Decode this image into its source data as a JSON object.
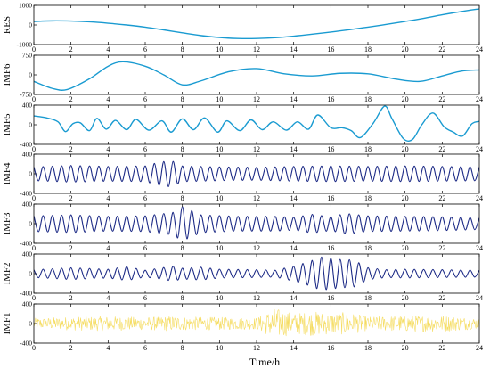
{
  "chart_data": {
    "type": "line",
    "xlabel": "Time/h",
    "xlim": [
      0,
      24
    ],
    "xticks": [
      0,
      2,
      4,
      6,
      8,
      10,
      12,
      14,
      16,
      18,
      20,
      22,
      24
    ],
    "grid": false,
    "panels": [
      {
        "ylabel": "RES",
        "ylim": [
          -1000,
          1000
        ],
        "yticks": [
          -1000,
          0,
          1000
        ],
        "yticklabels": [
          "-1000",
          "0",
          "1000"
        ],
        "color": "#1a9bd1",
        "kind": "smooth",
        "series": [
          {
            "x": [
              0,
              1,
              2,
              3,
              4,
              5,
              6,
              7,
              8,
              9,
              10,
              11,
              12,
              13,
              14,
              15,
              16,
              17,
              18,
              19,
              20,
              21,
              22,
              23,
              24
            ],
            "y": [
              180,
              210,
              200,
              160,
              90,
              0,
              -110,
              -250,
              -400,
              -540,
              -640,
              -690,
              -690,
              -650,
              -570,
              -470,
              -360,
              -240,
              -110,
              30,
              180,
              340,
              520,
              680,
              820
            ]
          }
        ]
      },
      {
        "ylabel": "IMF6",
        "ylim": [
          -750,
          750
        ],
        "yticks": [
          -750,
          0,
          750
        ],
        "yticklabels": [
          "-750",
          "0",
          "750"
        ],
        "color": "#1a9bd1",
        "kind": "smooth",
        "series": [
          {
            "x": [
              0,
              1,
              1.8,
              3,
              4,
              4.8,
              6,
              7,
              8,
              9,
              10.5,
              12,
              13.5,
              15,
              16.5,
              18,
              19.5,
              20.8,
              22,
              23,
              24
            ],
            "y": [
              -250,
              -520,
              -560,
              -150,
              330,
              500,
              330,
              0,
              -380,
              -230,
              120,
              240,
              40,
              -40,
              60,
              40,
              -160,
              -250,
              -40,
              140,
              190
            ]
          }
        ]
      },
      {
        "ylabel": "IMF5",
        "ylim": [
          -400,
          400
        ],
        "yticks": [
          -400,
          0,
          400
        ],
        "yticklabels": [
          "-400",
          "0",
          "400"
        ],
        "color": "#1a9bd1",
        "kind": "smooth",
        "series": [
          {
            "x": [
              0,
              0.7,
              1.3,
              1.7,
              2.1,
              2.5,
              3.0,
              3.4,
              3.9,
              4.4,
              5.0,
              5.5,
              6.2,
              6.9,
              7.4,
              8.0,
              8.6,
              9.2,
              9.9,
              10.4,
              11.1,
              11.7,
              12.3,
              12.9,
              13.6,
              14.2,
              14.8,
              15.3,
              16.0,
              16.6,
              17.1,
              17.6,
              18.3,
              18.9,
              19.3,
              19.9,
              20.4,
              20.9,
              21.5,
              22.1,
              22.6,
              23.1,
              23.6,
              24
            ],
            "y": [
              180,
              140,
              60,
              -140,
              20,
              40,
              -120,
              130,
              -90,
              90,
              -100,
              110,
              -110,
              80,
              -150,
              120,
              -100,
              140,
              -150,
              80,
              -120,
              100,
              -100,
              60,
              -110,
              60,
              -90,
              200,
              -60,
              -60,
              -120,
              -260,
              40,
              380,
              120,
              -280,
              -300,
              0,
              240,
              -40,
              -150,
              -230,
              20,
              70
            ]
          }
        ]
      },
      {
        "ylabel": "IMF4",
        "ylim": [
          -400,
          400
        ],
        "yticks": [
          -400,
          0,
          400
        ],
        "yticklabels": [
          "-400",
          "0",
          "400"
        ],
        "color": "#1c2a86",
        "kind": "osc",
        "series": [
          {
            "x": [
              0,
              2,
              4,
              6,
              6.8,
              7.4,
              8,
              10,
              12,
              14,
              16,
              18,
              20,
              22,
              24
            ],
            "y": [
              140,
              170,
              150,
              160,
              240,
              270,
              160,
              140,
              130,
              150,
              160,
              150,
              160,
              150,
              140
            ]
          }
        ]
      },
      {
        "ylabel": "IMF3",
        "ylim": [
          -400,
          400
        ],
        "yticks": [
          -400,
          0,
          400
        ],
        "yticklabels": [
          "-400",
          "0",
          "400"
        ],
        "color": "#1c2a86",
        "kind": "osc",
        "series": [
          {
            "x": [
              0,
              2,
              4,
              6,
              7.5,
              8,
              9,
              11,
              13,
              14,
              15,
              16,
              16.8,
              18,
              20,
              22,
              24
            ],
            "y": [
              160,
              180,
              150,
              160,
              230,
              350,
              180,
              150,
              150,
              130,
              190,
              140,
              210,
              160,
              150,
              140,
              120
            ]
          }
        ]
      },
      {
        "ylabel": "IMF2",
        "ylim": [
          -400,
          400
        ],
        "yticks": [
          -400,
          0,
          400
        ],
        "yticklabels": [
          "-400",
          "0",
          "400"
        ],
        "color": "#1c2a86",
        "kind": "osc",
        "series": [
          {
            "x": [
              0,
              2,
              4,
              5,
              6,
              7.5,
              8,
              9,
              10,
              12,
              13,
              14,
              14.8,
              15.5,
              16.5,
              17.2,
              18,
              19,
              20,
              22,
              24
            ],
            "y": [
              80,
              120,
              90,
              140,
              70,
              150,
              110,
              130,
              90,
              80,
              70,
              150,
              240,
              340,
              290,
              280,
              120,
              80,
              90,
              80,
              70
            ]
          }
        ]
      },
      {
        "ylabel": "IMF1",
        "ylim": [
          -400,
          400
        ],
        "yticks": [
          -400,
          0,
          400
        ],
        "yticklabels": [
          "-400",
          "0",
          "400"
        ],
        "color": "#f5dc60",
        "kind": "noise",
        "series": [
          {
            "x": [
              0,
              2,
              4,
              6,
              7.5,
              8,
              10,
              12,
              13,
              14,
              15,
              16,
              17,
              18,
              20,
              22,
              24
            ],
            "y": [
              110,
              140,
              150,
              130,
              160,
              140,
              130,
              120,
              320,
              210,
              250,
              220,
              230,
              140,
              170,
              170,
              110
            ]
          }
        ]
      }
    ]
  }
}
